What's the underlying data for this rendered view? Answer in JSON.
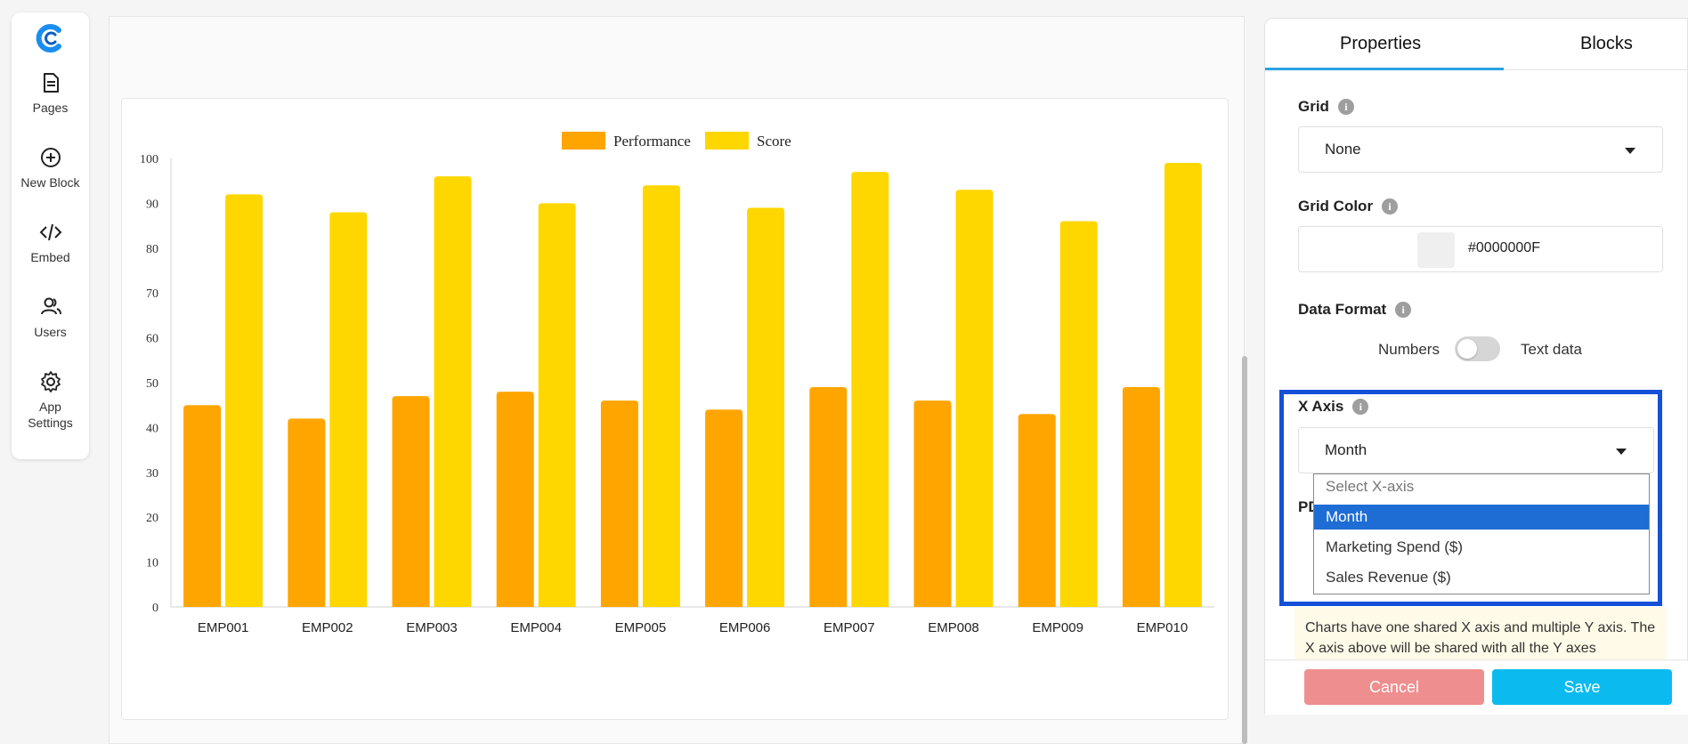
{
  "nav": {
    "items": [
      {
        "label": "Pages",
        "icon": "document-icon"
      },
      {
        "label": "New Block",
        "icon": "plus-circle-icon"
      },
      {
        "label": "Embed",
        "icon": "code-icon"
      },
      {
        "label": "Users",
        "icon": "users-icon"
      },
      {
        "label": "App\nSettings",
        "icon": "gear-icon"
      }
    ],
    "brand_color": "#1a8ef0"
  },
  "chart_data": {
    "type": "bar",
    "categories": [
      "EMP001",
      "EMP002",
      "EMP003",
      "EMP004",
      "EMP005",
      "EMP006",
      "EMP007",
      "EMP008",
      "EMP009",
      "EMP010"
    ],
    "series": [
      {
        "name": "Performance",
        "color": "#ffa500",
        "values": [
          45,
          42,
          47,
          48,
          46,
          44,
          49,
          46,
          43,
          49
        ]
      },
      {
        "name": "Score",
        "color": "#ffd700",
        "values": [
          92,
          88,
          96,
          90,
          94,
          89,
          97,
          93,
          86,
          99
        ]
      }
    ],
    "ylim": [
      0,
      100
    ],
    "yticks": [
      0,
      10,
      20,
      30,
      40,
      50,
      60,
      70,
      80,
      90,
      100
    ],
    "legend_position": "top-center",
    "grid": false
  },
  "panel": {
    "tabs": [
      {
        "label": "Properties",
        "active": true
      },
      {
        "label": "Blocks",
        "active": false
      }
    ],
    "grid": {
      "label": "Grid",
      "value": "None"
    },
    "grid_color": {
      "label": "Grid Color",
      "value": "#0000000F"
    },
    "data_format": {
      "label": "Data Format",
      "left": "Numbers",
      "right": "Text data",
      "checked": false
    },
    "x_axis": {
      "label": "X Axis",
      "value": "Month",
      "options": [
        {
          "label": "Select X-axis",
          "placeholder": true
        },
        {
          "label": "Month",
          "selected": true
        },
        {
          "label": "Marketing Spend ($)"
        },
        {
          "label": "Sales Revenue ($)"
        }
      ]
    },
    "partial_label": "PD",
    "note": "Charts have one shared X axis and multiple Y axis. The X axis above will be shared with all the Y axes",
    "cancel_label": "Cancel",
    "save_label": "Save",
    "info_glyph": "i",
    "highlight_color": "#1450d8"
  }
}
